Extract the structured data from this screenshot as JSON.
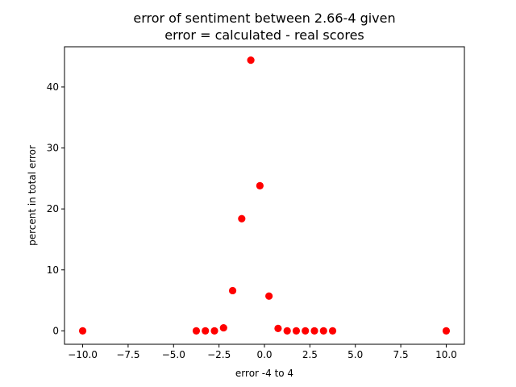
{
  "chart_data": {
    "type": "scatter",
    "title": "error of sentiment between 2.66-4 given",
    "subtitle": "error = calculated - real scores",
    "xlabel": "error -4 to 4",
    "ylabel": "percent in total error",
    "xlim": [
      -11,
      11
    ],
    "ylim": [
      -2.2,
      46.6
    ],
    "xticks": [
      -10.0,
      -7.5,
      -5.0,
      -2.5,
      0.0,
      2.5,
      5.0,
      7.5,
      10.0
    ],
    "xtick_labels": [
      "−10.0",
      "−7.5",
      "−5.0",
      "−2.5",
      "0.0",
      "2.5",
      "5.0",
      "7.5",
      "10.0"
    ],
    "yticks": [
      0,
      10,
      20,
      30,
      40
    ],
    "ytick_labels": [
      "0",
      "10",
      "20",
      "30",
      "40"
    ],
    "marker_color": "#ff0000",
    "grid": false,
    "x": [
      -10.0,
      -3.75,
      -3.25,
      -2.75,
      -2.25,
      -1.75,
      -1.25,
      -0.75,
      -0.25,
      0.25,
      0.75,
      1.25,
      1.75,
      2.25,
      2.75,
      3.25,
      3.75,
      10.0
    ],
    "y": [
      0.0,
      0.0,
      0.0,
      0.0,
      0.5,
      6.6,
      18.4,
      44.4,
      23.8,
      5.7,
      0.4,
      0.0,
      0.0,
      0.0,
      0.0,
      0.0,
      0.0,
      0.0
    ]
  }
}
